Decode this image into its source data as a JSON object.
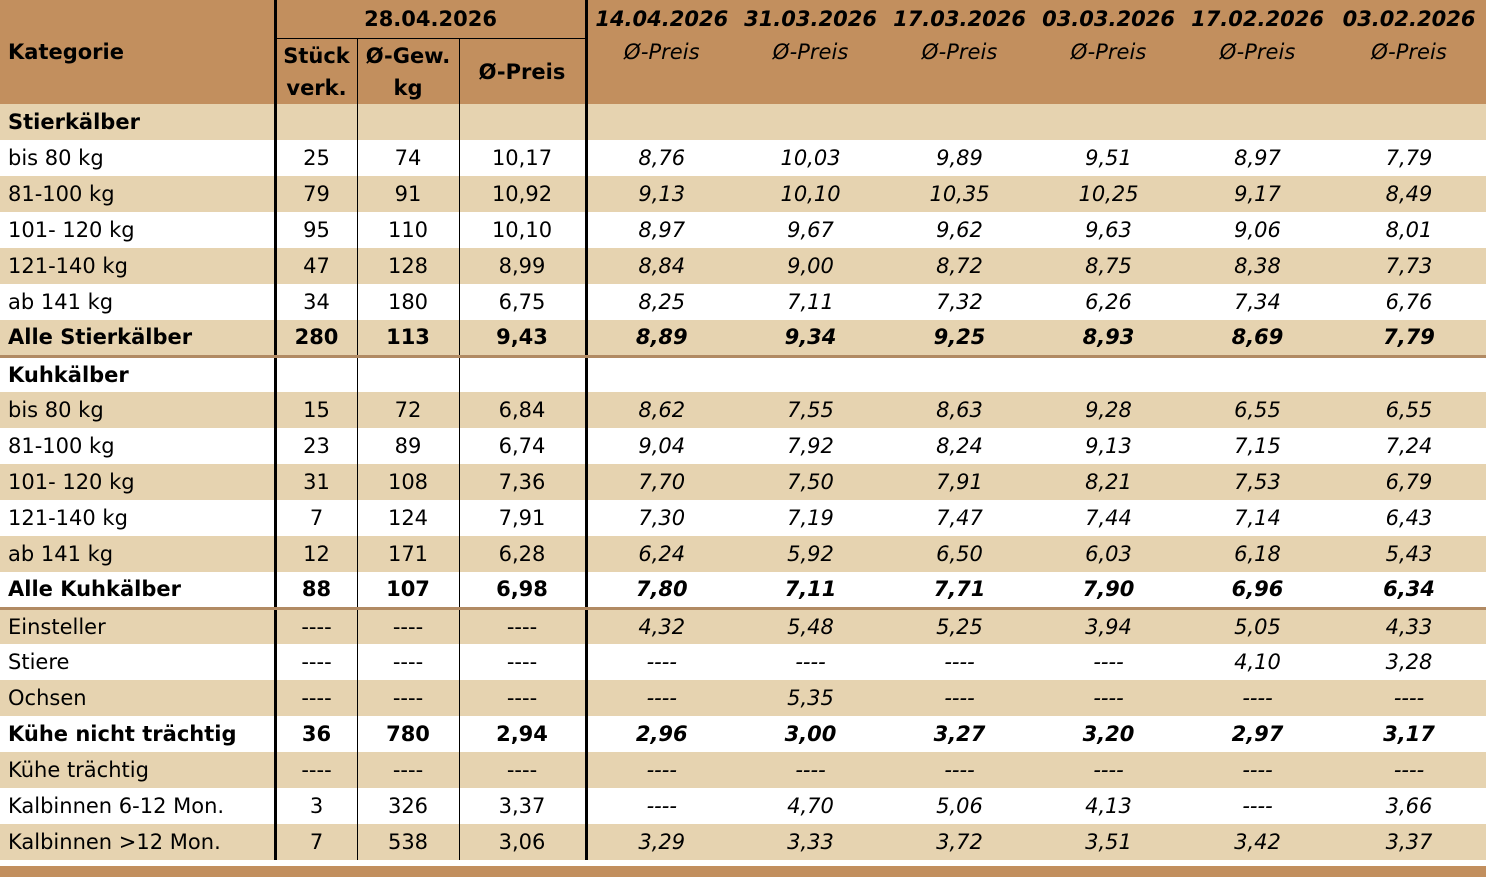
{
  "header": {
    "kategorie": "Kategorie",
    "current_date": "28.04.2026",
    "col_stueck": "Stück verk.",
    "col_stueck_l1": "Stück",
    "col_stueck_l2": "verk.",
    "col_gew_l1": "Ø-Gew.",
    "col_gew_l2": "kg",
    "col_preis": "Ø-Preis",
    "history_dates": [
      "14.04.2026",
      "31.03.2026",
      "17.03.2026",
      "03.03.2026",
      "17.02.2026",
      "03.02.2026"
    ],
    "history_label": "Ø-Preis"
  },
  "rows": [
    {
      "label": "Stierkälber",
      "style": "section",
      "shade": true,
      "values": [
        "",
        "",
        "",
        "",
        "",
        "",
        "",
        "",
        ""
      ]
    },
    {
      "label": "bis 80 kg",
      "shade": false,
      "values": [
        "25",
        "74",
        "10,17",
        "8,76",
        "10,03",
        "9,89",
        "9,51",
        "8,97",
        "7,79"
      ]
    },
    {
      "label": "81-100 kg",
      "shade": true,
      "values": [
        "79",
        "91",
        "10,92",
        "9,13",
        "10,10",
        "10,35",
        "10,25",
        "9,17",
        "8,49"
      ]
    },
    {
      "label": "101- 120 kg",
      "shade": false,
      "values": [
        "95",
        "110",
        "10,10",
        "8,97",
        "9,67",
        "9,62",
        "9,63",
        "9,06",
        "8,01"
      ]
    },
    {
      "label": "121-140 kg",
      "shade": true,
      "values": [
        "47",
        "128",
        "8,99",
        "8,84",
        "9,00",
        "8,72",
        "8,75",
        "8,38",
        "7,73"
      ]
    },
    {
      "label": "ab 141 kg",
      "shade": false,
      "values": [
        "34",
        "180",
        "6,75",
        "8,25",
        "7,11",
        "7,32",
        "6,26",
        "7,34",
        "6,76"
      ]
    },
    {
      "label": "Alle Stierkälber",
      "style": "bold",
      "shade": true,
      "values": [
        "280",
        "113",
        "9,43",
        "8,89",
        "9,34",
        "9,25",
        "8,93",
        "8,69",
        "7,79"
      ]
    },
    {
      "label": "Kuhkälber",
      "style": "section",
      "shade": false,
      "values": [
        "",
        "",
        "",
        "",
        "",
        "",
        "",
        "",
        ""
      ]
    },
    {
      "label": "bis 80 kg",
      "shade": true,
      "values": [
        "15",
        "72",
        "6,84",
        "8,62",
        "7,55",
        "8,63",
        "9,28",
        "6,55",
        "6,55"
      ]
    },
    {
      "label": "81-100 kg",
      "shade": false,
      "values": [
        "23",
        "89",
        "6,74",
        "9,04",
        "7,92",
        "8,24",
        "9,13",
        "7,15",
        "7,24"
      ]
    },
    {
      "label": "101- 120 kg",
      "shade": true,
      "values": [
        "31",
        "108",
        "7,36",
        "7,70",
        "7,50",
        "7,91",
        "8,21",
        "7,53",
        "6,79"
      ]
    },
    {
      "label": "121-140 kg",
      "shade": false,
      "values": [
        "7",
        "124",
        "7,91",
        "7,30",
        "7,19",
        "7,47",
        "7,44",
        "7,14",
        "6,43"
      ]
    },
    {
      "label": "ab 141 kg",
      "shade": true,
      "values": [
        "12",
        "171",
        "6,28",
        "6,24",
        "5,92",
        "6,50",
        "6,03",
        "6,18",
        "5,43"
      ]
    },
    {
      "label": "Alle Kuhkälber",
      "style": "bold",
      "shade": false,
      "values": [
        "88",
        "107",
        "6,98",
        "7,80",
        "7,11",
        "7,71",
        "7,90",
        "6,96",
        "6,34"
      ]
    },
    {
      "label": "Einsteller",
      "shade": true,
      "values": [
        "----",
        "----",
        "----",
        "4,32",
        "5,48",
        "5,25",
        "3,94",
        "5,05",
        "4,33"
      ]
    },
    {
      "label": "Stiere",
      "shade": false,
      "values": [
        "----",
        "----",
        "----",
        "----",
        "----",
        "----",
        "----",
        "4,10",
        "3,28"
      ]
    },
    {
      "label": "Ochsen",
      "shade": true,
      "values": [
        "----",
        "----",
        "----",
        "----",
        "5,35",
        "----",
        "----",
        "----",
        "----"
      ]
    },
    {
      "label": "Kühe nicht trächtig",
      "style": "bold",
      "shade": false,
      "values": [
        "36",
        "780",
        "2,94",
        "2,96",
        "3,00",
        "3,27",
        "3,20",
        "2,97",
        "3,17"
      ]
    },
    {
      "label": "Kühe trächtig",
      "shade": true,
      "values": [
        "----",
        "----",
        "----",
        "----",
        "----",
        "----",
        "----",
        "----",
        "----"
      ]
    },
    {
      "label": "Kalbinnen 6-12 Mon.",
      "shade": false,
      "values": [
        "3",
        "326",
        "3,37",
        "----",
        "4,70",
        "5,06",
        "4,13",
        "----",
        "3,66"
      ]
    },
    {
      "label": "Kalbinnen >12 Mon.",
      "shade": true,
      "values": [
        "7",
        "538",
        "3,06",
        "3,29",
        "3,33",
        "3,72",
        "3,51",
        "3,42",
        "3,37"
      ]
    }
  ],
  "colors": {
    "header_bg": "#c28f5e",
    "row_shade": "#e6d3b0",
    "separator": "#b18a63"
  }
}
